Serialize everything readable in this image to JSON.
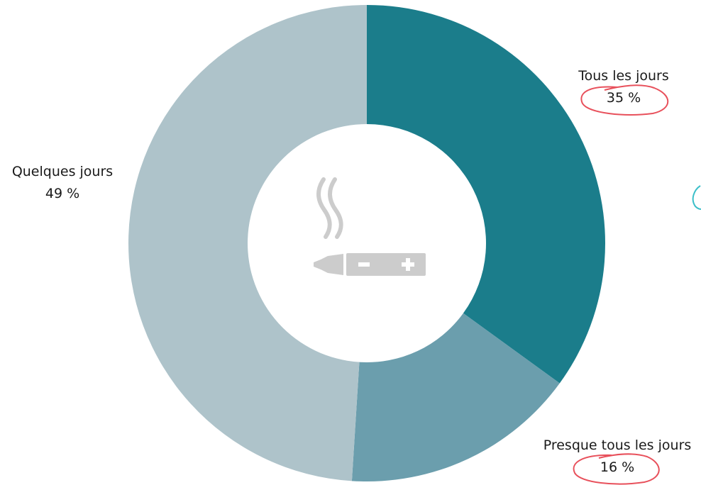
{
  "chart_data": {
    "type": "pie",
    "donut": true,
    "title": "",
    "slices": [
      {
        "label": "Tous les jours",
        "value": 35,
        "value_text": "35 %",
        "color": "#1b7d8b"
      },
      {
        "label": "Presque tous les jours",
        "value": 16,
        "value_text": "16 %",
        "color": "#6b9ead"
      },
      {
        "label": "Quelques jours",
        "value": 49,
        "value_text": "49 %",
        "color": "#aec3ca"
      }
    ],
    "center_icon": "e-cigarette-with-smoke-icon",
    "annotation_color": "#e8505b",
    "annotations": [
      "35 % circled by hand",
      "16 % circled by hand"
    ]
  }
}
